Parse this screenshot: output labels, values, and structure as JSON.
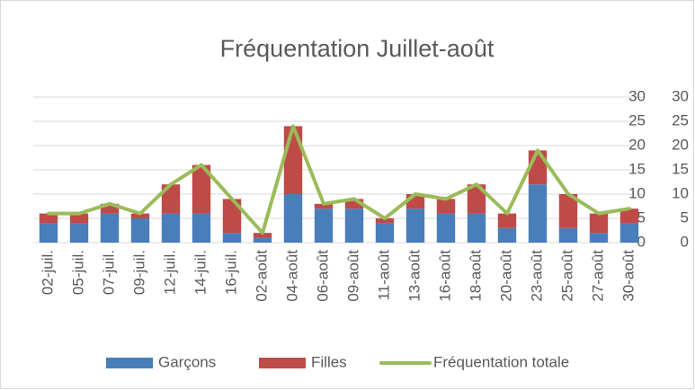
{
  "chart_data": {
    "type": "bar",
    "stacked": true,
    "title": "Fréquentation Juillet-août",
    "categories": [
      "02-juil.",
      "05-juil.",
      "07-juil.",
      "09-juil.",
      "12-juil.",
      "14-juil.",
      "16-juil.",
      "02-août",
      "04-août",
      "06-août",
      "09-août",
      "11-août",
      "13-août",
      "16-août",
      "18-août",
      "20-août",
      "23-août",
      "25-août",
      "27-août",
      "30-août"
    ],
    "series": [
      {
        "name": "Garçons",
        "type": "bar",
        "color": "#4a7ebb",
        "values": [
          4,
          4,
          6,
          5,
          6,
          6,
          2,
          1,
          10,
          7,
          7,
          4,
          7,
          6,
          6,
          3,
          12,
          3,
          2,
          4
        ]
      },
      {
        "name": "Filles",
        "type": "bar",
        "color": "#be4b48",
        "values": [
          2,
          2,
          2,
          1,
          6,
          10,
          7,
          1,
          14,
          1,
          2,
          1,
          3,
          3,
          6,
          3,
          7,
          7,
          4,
          3
        ]
      },
      {
        "name": "Fréquentation totale",
        "type": "line",
        "axis": "y2",
        "color": "#9bbb59",
        "values": [
          6,
          6,
          8,
          6,
          12,
          16,
          9,
          2,
          24,
          8,
          9,
          5,
          10,
          9,
          12,
          6,
          19,
          10,
          6,
          7
        ]
      }
    ],
    "ylim": [
      0,
      30
    ],
    "yticks": [
      0,
      5,
      10,
      15,
      20,
      25,
      30
    ],
    "y2lim": [
      0,
      30
    ],
    "y2ticks": [
      0,
      5,
      10,
      15,
      20,
      25,
      30
    ],
    "grid": true,
    "legend": "bottom"
  }
}
